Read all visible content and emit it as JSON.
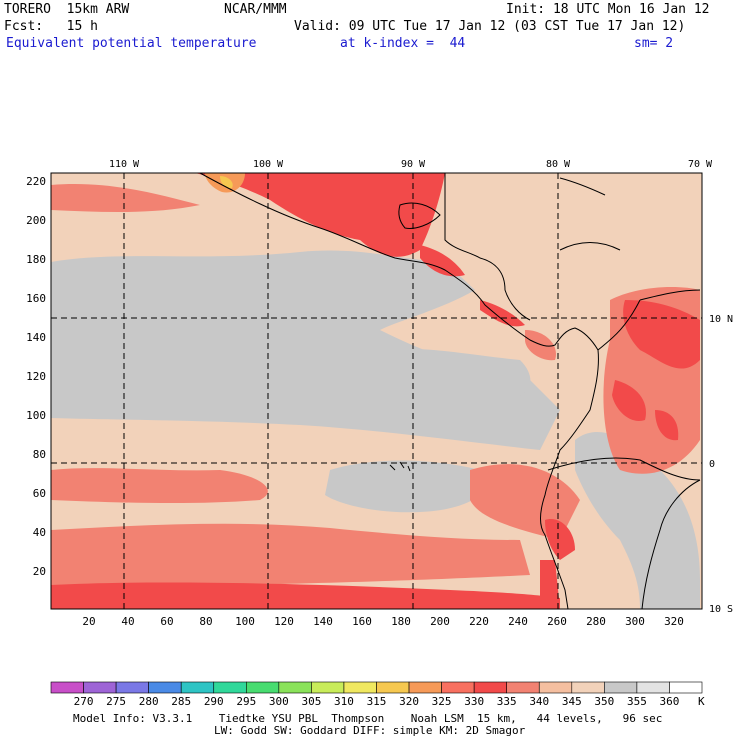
{
  "header": {
    "model": "TORERO  15km ARW",
    "center": "NCAR/MMM",
    "init": "Init: 18 UTC Mon 16 Jan 12",
    "fcst": "Fcst:   15 h",
    "valid": "Valid: 09 UTC Tue 17 Jan 12 (03 CST Tue 17 Jan 12)",
    "field": "Equivalent potential temperature",
    "level": "at k-index =  44",
    "smoothing": "sm= 2"
  },
  "map": {
    "lon_labels": [
      "110 W",
      "100 W",
      "90 W",
      "80 W",
      "70 W"
    ],
    "lat_labels": [
      "10 N",
      "0",
      "10 S"
    ],
    "x_ticks": [
      "20",
      "40",
      "60",
      "80",
      "100",
      "120",
      "140",
      "160",
      "180",
      "200",
      "220",
      "240",
      "260",
      "280",
      "300",
      "320"
    ],
    "y_ticks": [
      "220",
      "200",
      "180",
      "160",
      "140",
      "120",
      "100",
      "80",
      "60",
      "40",
      "20"
    ],
    "grid_range": {
      "x": [
        1,
        334
      ],
      "y": [
        1,
        225
      ]
    }
  },
  "colorbar": {
    "unit": "K",
    "labels": [
      "270",
      "275",
      "280",
      "285",
      "290",
      "295",
      "300",
      "305",
      "310",
      "315",
      "320",
      "325",
      "330",
      "335",
      "340",
      "345",
      "350",
      "355",
      "360"
    ],
    "colors": [
      "#c84fc8",
      "#9e64d6",
      "#7a78e6",
      "#4a8ae6",
      "#2ec4c4",
      "#30d89a",
      "#48dc70",
      "#8ae25a",
      "#c8ec5a",
      "#f0e860",
      "#f6c850",
      "#f69a58",
      "#f87060",
      "#f24a4a",
      "#f28272",
      "#f5bfa0",
      "#f2d2ba",
      "#c8c8c8",
      "#e3e3e3",
      "#ffffff"
    ]
  },
  "footer": {
    "line1": "Model Info: V3.3.1    Tiedtke YSU PBL  Thompson    Noah LSM  15 km,   44 levels,   96 sec",
    "line2": "LW: Godd SW: Goddard DIFF: simple KM: 2D Smagor"
  }
}
